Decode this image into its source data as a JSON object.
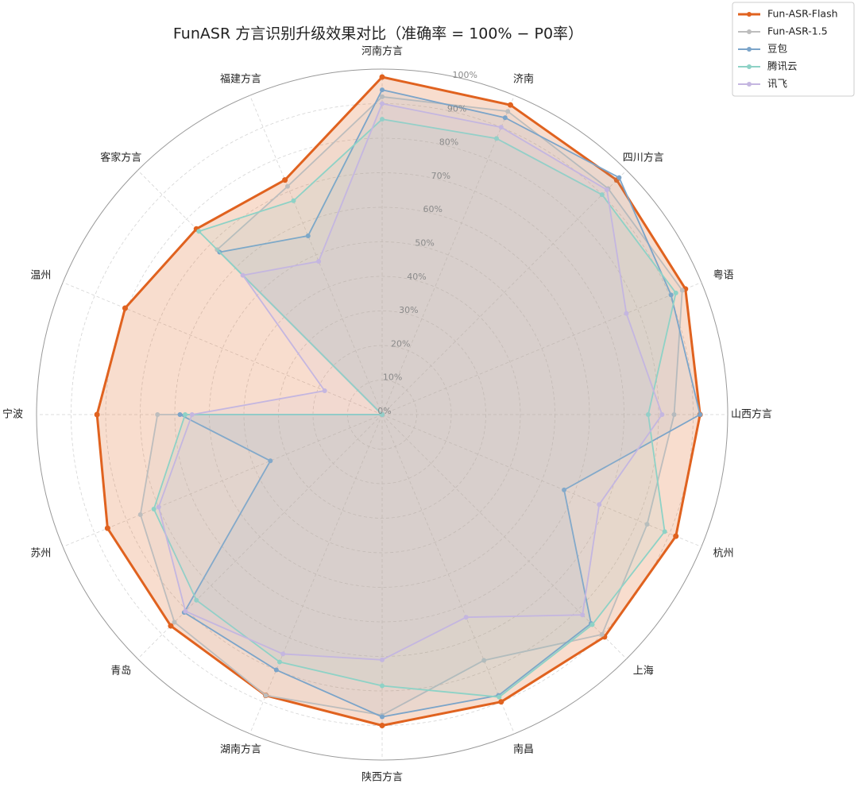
{
  "chart_data": {
    "type": "radar",
    "title": "FunASR 方言识别升级效果对比（准确率 = 100% − P0率）",
    "categories": [
      "河南方言",
      "济南",
      "四川方言",
      "粤语",
      "山西方言",
      "杭州",
      "上海",
      "南昌",
      "陕西方言",
      "湖南方言",
      "青岛",
      "苏州",
      "宁波",
      "温州",
      "客家方言",
      "福建方言"
    ],
    "series": [
      {
        "name": "Fun-ASR-Flash",
        "color": "#e0621f",
        "values": [
          97.7,
          97,
          96,
          95,
          92,
          92,
          91,
          90,
          90,
          88,
          86.5,
          86,
          82.5,
          80.5,
          76,
          73.5
        ]
      },
      {
        "name": "Fun-ASR-1.5",
        "color": "#bdbdbd",
        "values": [
          92,
          95,
          92.5,
          94,
          84.5,
          83,
          90,
          77,
          87,
          88,
          85,
          75.7,
          65,
          0,
          67.5,
          71.5
        ]
      },
      {
        "name": "豆包",
        "color": "#7ba4c9",
        "values": [
          94,
          93,
          97,
          90.5,
          92,
          57,
          85.5,
          88,
          87.5,
          80,
          81,
          35,
          58.5,
          0,
          66.5,
          56
        ]
      },
      {
        "name": "腾讯云",
        "color": "#8ed2c6",
        "values": [
          85.5,
          86.5,
          90,
          92,
          77,
          88.5,
          86,
          88.5,
          78.5,
          77.5,
          76,
          71.5,
          57,
          0,
          75,
          67
        ]
      },
      {
        "name": "讯飞",
        "color": "#c4b6e0",
        "values": [
          90,
          90,
          92,
          76.5,
          81,
          68,
          82,
          63.5,
          71,
          75,
          80.5,
          70,
          55,
          18,
          57,
          48
        ]
      }
    ],
    "rlim": [
      0,
      100
    ],
    "rticks": [
      {
        "value": 0,
        "label": "0%"
      },
      {
        "value": 10,
        "label": "10%"
      },
      {
        "value": 20,
        "label": "20%"
      },
      {
        "value": 30,
        "label": "30%"
      },
      {
        "value": 40,
        "label": "40%"
      },
      {
        "value": 50,
        "label": "50%"
      },
      {
        "value": 60,
        "label": "60%"
      },
      {
        "value": 70,
        "label": "70%"
      },
      {
        "value": 80,
        "label": "80%"
      },
      {
        "value": 90,
        "label": "90%"
      },
      {
        "value": 100,
        "label": "100%"
      }
    ],
    "grid": true,
    "legend": "upper right"
  }
}
